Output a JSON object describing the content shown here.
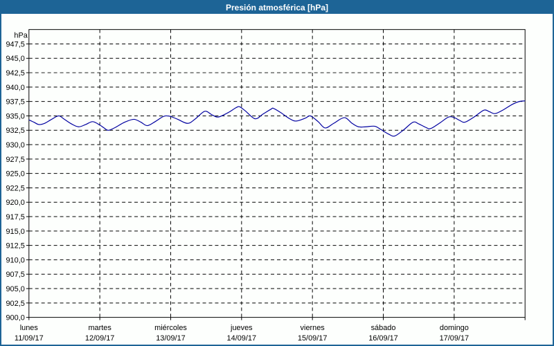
{
  "window": {
    "title": "Presión atmosférica [hPa]"
  },
  "colors": {
    "titlebar_bg": "#1d6496",
    "titlebar_text": "#ffffff",
    "window_border": "#1d6496",
    "background": "#fdfffd",
    "plot_border": "#000000",
    "grid": "#000000",
    "text": "#000000",
    "line": "#0000a0"
  },
  "chart_data": {
    "type": "line",
    "title": "Presión atmosférica [hPa]",
    "y_unit_label": "hPa",
    "ylim": [
      900.0,
      950.0
    ],
    "grid": "dashed",
    "legend_position": "none",
    "y_ticks": [
      947.5,
      945.0,
      942.5,
      940.0,
      937.5,
      935.0,
      932.5,
      930.0,
      927.5,
      925.0,
      922.5,
      920.0,
      917.5,
      915.0,
      912.5,
      910.0,
      907.5,
      905.0,
      902.5,
      900.0
    ],
    "y_tick_labels": [
      "947,5",
      "945,0",
      "942,5",
      "940,0",
      "937,5",
      "935,0",
      "932,5",
      "930,0",
      "927,5",
      "925,0",
      "922,5",
      "920,0",
      "917,5",
      "915,0",
      "912,5",
      "910,0",
      "907,5",
      "905,0",
      "902,5",
      "900,0"
    ],
    "x_categories": [
      {
        "day": "lunes",
        "date": "11/09/17"
      },
      {
        "day": "martes",
        "date": "12/09/17"
      },
      {
        "day": "miércoles",
        "date": "13/09/17"
      },
      {
        "day": "jueves",
        "date": "14/09/17"
      },
      {
        "day": "viernes",
        "date": "15/09/17"
      },
      {
        "day": "sábado",
        "date": "16/09/17"
      },
      {
        "day": "domingo",
        "date": "17/09/17"
      }
    ],
    "series": [
      {
        "name": "Presión atmosférica",
        "color": "#0000a0",
        "x_unit": "days_from_start",
        "points": [
          [
            0.0,
            934.3
          ],
          [
            0.07,
            933.9
          ],
          [
            0.14,
            933.5
          ],
          [
            0.22,
            933.7
          ],
          [
            0.32,
            934.4
          ],
          [
            0.42,
            935.0
          ],
          [
            0.5,
            934.4
          ],
          [
            0.6,
            933.6
          ],
          [
            0.7,
            933.1
          ],
          [
            0.8,
            933.5
          ],
          [
            0.9,
            934.0
          ],
          [
            1.0,
            933.4
          ],
          [
            1.06,
            932.9
          ],
          [
            1.12,
            932.5
          ],
          [
            1.22,
            933.0
          ],
          [
            1.35,
            933.9
          ],
          [
            1.48,
            934.4
          ],
          [
            1.58,
            933.9
          ],
          [
            1.67,
            933.3
          ],
          [
            1.78,
            934.0
          ],
          [
            1.88,
            934.8
          ],
          [
            1.93,
            935.0
          ],
          [
            2.0,
            934.9
          ],
          [
            2.1,
            934.4
          ],
          [
            2.24,
            933.7
          ],
          [
            2.35,
            934.5
          ],
          [
            2.48,
            935.8
          ],
          [
            2.58,
            935.2
          ],
          [
            2.67,
            934.8
          ],
          [
            2.8,
            935.5
          ],
          [
            2.92,
            936.4
          ],
          [
            2.97,
            936.6
          ],
          [
            3.05,
            935.9
          ],
          [
            3.19,
            934.5
          ],
          [
            3.3,
            935.3
          ],
          [
            3.42,
            936.2
          ],
          [
            3.45,
            936.3
          ],
          [
            3.55,
            935.6
          ],
          [
            3.68,
            934.5
          ],
          [
            3.77,
            934.1
          ],
          [
            3.9,
            934.6
          ],
          [
            3.97,
            935.0
          ],
          [
            4.08,
            934.0
          ],
          [
            4.18,
            932.9
          ],
          [
            4.3,
            933.7
          ],
          [
            4.45,
            934.7
          ],
          [
            4.56,
            933.7
          ],
          [
            4.65,
            933.1
          ],
          [
            4.75,
            933.1
          ],
          [
            4.88,
            933.2
          ],
          [
            4.97,
            932.6
          ],
          [
            5.08,
            931.8
          ],
          [
            5.16,
            931.5
          ],
          [
            5.28,
            932.5
          ],
          [
            5.42,
            933.9
          ],
          [
            5.5,
            933.6
          ],
          [
            5.6,
            933.0
          ],
          [
            5.67,
            932.8
          ],
          [
            5.8,
            933.8
          ],
          [
            5.92,
            934.8
          ],
          [
            6.0,
            934.7
          ],
          [
            6.08,
            934.2
          ],
          [
            6.15,
            933.9
          ],
          [
            6.28,
            934.8
          ],
          [
            6.42,
            936.0
          ],
          [
            6.5,
            935.7
          ],
          [
            6.58,
            935.4
          ],
          [
            6.7,
            936.1
          ],
          [
            6.82,
            937.0
          ],
          [
            6.92,
            937.5
          ],
          [
            7.0,
            937.6
          ]
        ]
      }
    ]
  }
}
